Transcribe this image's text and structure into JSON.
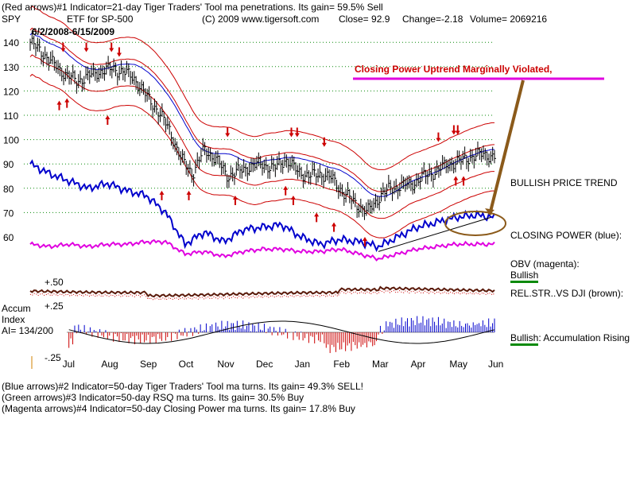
{
  "header": {
    "line1": "(Red arrows)#1 Indicator=21-day Tiger Traders' Tool ma penetrations.  Its gain= 59.5% Sell",
    "symbol": "SPY",
    "etf": "ETF for SP-500",
    "copyright": "(C) 2009 www.tigersoft.com",
    "close": "Close=   92.9",
    "change": "Change=-2.18",
    "volume": "Volume= 2069216",
    "date_range": "6/2/2008-6/15/2009"
  },
  "annotation": {
    "headline": "Closing Power Uptrend Marginally Violated,",
    "headline_color": "#cc0000",
    "underline_color": "#e000e0",
    "arrow_color": "#8b5a1a"
  },
  "right_labels": {
    "trend": "BULLISH PRICE TREND",
    "closing_power": "CLOSING POWER (blue):",
    "obv": "OBV (magenta):",
    "obv_status": "Bullish",
    "relstr": "REL.STR..VS DJI (brown):",
    "accum_status": "Bullish",
    "accum_text": ": Accumulation Rising"
  },
  "accum": {
    "title": "Accum",
    "index": "Index",
    "ai": "AI= 134/200",
    "hi": "+.50",
    "mid": "+.25",
    "lo": "-.25"
  },
  "footer": {
    "line2": "(Blue arrows)#2 Indicator=50-day Tiger Traders' Tool ma turns.  Its gain= 49.3% SELL!",
    "line3": "(Green arrows)#3 Indicator=50-day RSQ ma turns.  Its gain= 30.5% Buy",
    "line4": "(Magenta arrows)#4 Indicator=50-day Closing Power ma turns.  Its gain= 17.8% Buy"
  },
  "colors": {
    "price": "#000000",
    "band": "#cc0000",
    "ma": "#0000cc",
    "closing_power": "#0000cc",
    "obv": "#e000e0",
    "relstr": "#5a1a0a",
    "accum_pos": "#0000cc",
    "accum_neg": "#cc0000",
    "grid": "#0a8a0a"
  },
  "chart_data": {
    "type": "line",
    "title": "SPY ETF for SP-500",
    "xlabel": "",
    "ylabel": "",
    "ylim": [
      55,
      142
    ],
    "y_ticks": [
      60,
      70,
      80,
      90,
      100,
      110,
      120,
      130,
      140
    ],
    "x_months": [
      "Jul",
      "Aug",
      "Sep",
      "Oct",
      "Nov",
      "Dec",
      "Jan",
      "Feb",
      "Mar",
      "Apr",
      "May",
      "Jun"
    ],
    "x_month_positions": [
      1,
      2,
      3,
      4,
      5,
      6,
      7,
      8,
      9,
      10,
      11,
      12
    ],
    "series": [
      {
        "name": "SPY Close",
        "x": [
          0,
          0.3,
          0.6,
          0.9,
          1.2,
          1.5,
          1.8,
          2.1,
          2.4,
          2.7,
          3.0,
          3.3,
          3.6,
          3.9,
          4.2,
          4.5,
          4.8,
          5.1,
          5.4,
          5.7,
          6.0,
          6.3,
          6.6,
          6.9,
          7.2,
          7.5,
          7.8,
          8.1,
          8.4,
          8.7,
          9.0,
          9.3,
          9.6,
          9.9,
          10.2,
          10.5,
          10.8,
          11.1,
          11.4,
          11.7,
          12.0
        ],
        "values": [
          140,
          136,
          131,
          127,
          124,
          126,
          128,
          129,
          128,
          125,
          118,
          112,
          104,
          92,
          86,
          96,
          92,
          85,
          87,
          89,
          90,
          88,
          92,
          87,
          85,
          86,
          84,
          78,
          74,
          70,
          76,
          80,
          81,
          82,
          85,
          87,
          90,
          91,
          93,
          94,
          93
        ]
      },
      {
        "name": "Closing Power (blue)",
        "x": [
          0,
          0.5,
          1,
          1.5,
          2,
          2.5,
          3,
          3.5,
          4,
          4.5,
          5,
          5.5,
          6,
          6.5,
          7,
          7.5,
          8,
          8.5,
          9,
          9.5,
          10,
          10.5,
          11,
          11.5,
          12
        ],
        "values": [
          90,
          86,
          83,
          80,
          82,
          79,
          77,
          70,
          57,
          62,
          58,
          63,
          64,
          65,
          60,
          57,
          59,
          58,
          56,
          60,
          64,
          66,
          68,
          69,
          68
        ]
      },
      {
        "name": "OBV (magenta)",
        "x": [
          0,
          0.5,
          1,
          1.5,
          2,
          2.5,
          3,
          3.5,
          4,
          4.5,
          5,
          5.5,
          6,
          6.5,
          7,
          7.5,
          8,
          8.5,
          9,
          9.5,
          10,
          10.5,
          11,
          11.5,
          12
        ],
        "values": [
          57,
          56,
          57,
          56,
          57,
          57,
          58,
          58,
          53,
          54,
          52,
          54,
          55,
          55,
          54,
          54,
          55,
          53,
          51,
          53,
          55,
          56,
          57,
          57,
          57
        ]
      }
    ]
  }
}
